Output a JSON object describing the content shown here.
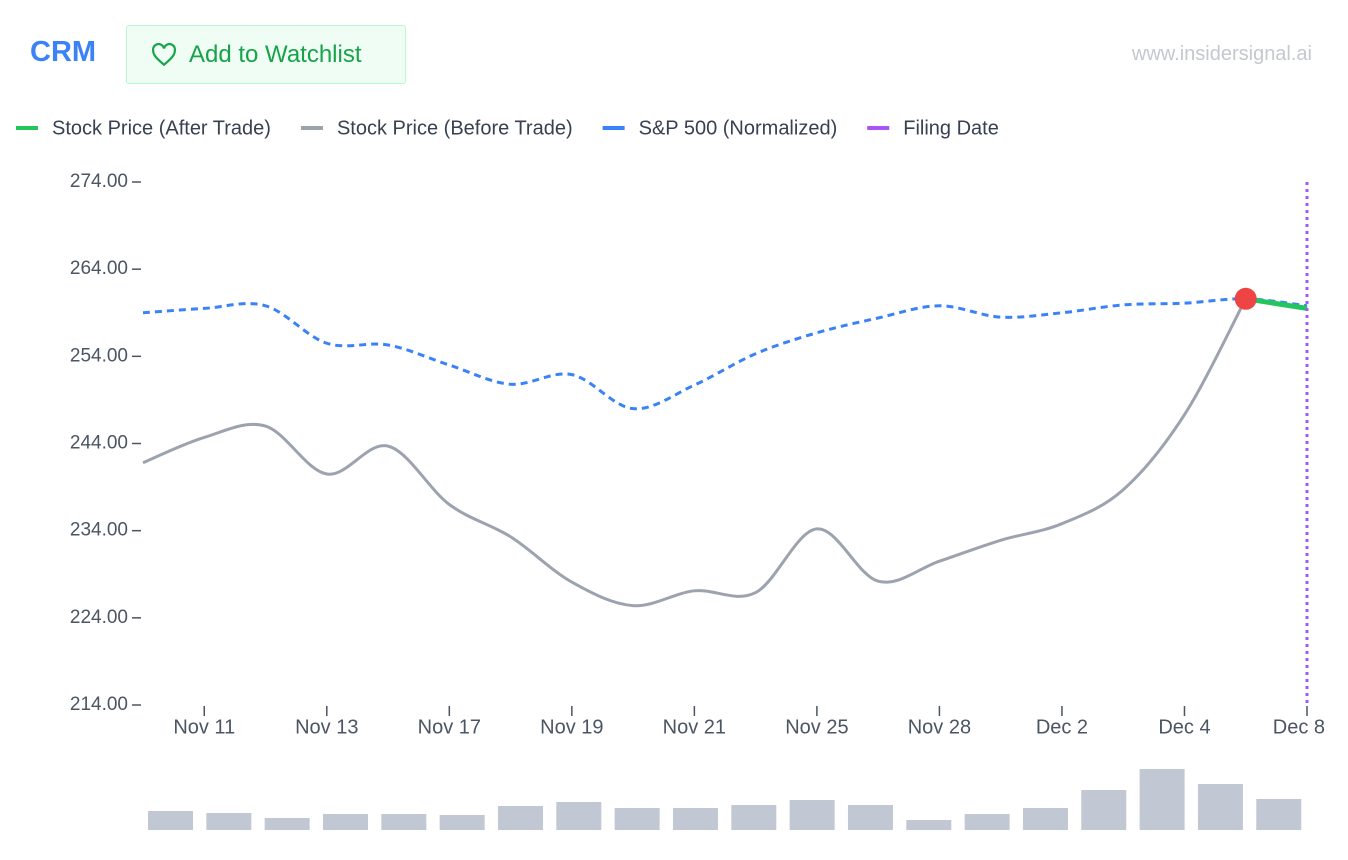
{
  "header": {
    "ticker": "CRM",
    "watchlist_button": "Add to Watchlist",
    "site": "www.insidersignal.ai"
  },
  "chart_data": {
    "type": "line",
    "categories": [
      null,
      "Nov 11",
      null,
      "Nov 13",
      null,
      "Nov 17",
      null,
      "Nov 19",
      null,
      "Nov 21",
      null,
      "Nov 25",
      null,
      "Nov 28",
      null,
      "Dec 2",
      null,
      "Dec 4",
      null,
      "Dec 8"
    ],
    "series": [
      {
        "name": "Stock Price (After Trade)",
        "color": "#22c55e",
        "values": [
          null,
          null,
          null,
          null,
          null,
          null,
          null,
          null,
          null,
          null,
          null,
          null,
          null,
          null,
          null,
          null,
          null,
          null,
          260.6,
          259.5
        ]
      },
      {
        "name": "Stock Price (Before Trade)",
        "color": "#9ca3af",
        "values": [
          241.8,
          244.7,
          246.0,
          240.5,
          243.7,
          237.0,
          233.3,
          228.1,
          225.4,
          227.1,
          226.9,
          234.2,
          228.2,
          230.5,
          232.9,
          234.8,
          238.7,
          247.3,
          260.6,
          null
        ]
      },
      {
        "name": "S&P 500 (Normalized)",
        "color": "#3b82f6",
        "dashed": true,
        "values": [
          259.0,
          259.5,
          259.8,
          255.5,
          255.3,
          253.0,
          250.8,
          251.9,
          248.0,
          250.7,
          254.3,
          256.7,
          258.4,
          259.8,
          258.5,
          259.0,
          259.9,
          260.1,
          260.6,
          259.8
        ]
      }
    ],
    "filing_date": {
      "name": "Filing Date",
      "color": "#a855f7",
      "x": "Dec 8"
    },
    "trade_marker": {
      "color": "#ef4444",
      "x": 18
    },
    "ylim": [
      214,
      274
    ],
    "yticks": [
      {
        "value": 214,
        "label": "214.00"
      },
      {
        "value": 224,
        "label": "224.00"
      },
      {
        "value": 234,
        "label": "234.00"
      },
      {
        "value": 244,
        "label": "244.00"
      },
      {
        "value": 254,
        "label": "254.00"
      },
      {
        "value": 264,
        "label": "264.00"
      },
      {
        "value": 274,
        "label": "274.00"
      }
    ],
    "volume": {
      "color": "#c1c7d3",
      "values": [
        19,
        17,
        12,
        16,
        16,
        15,
        24,
        28,
        22,
        22,
        25,
        30,
        25,
        10,
        16,
        22,
        40,
        61,
        46,
        31
      ]
    }
  }
}
